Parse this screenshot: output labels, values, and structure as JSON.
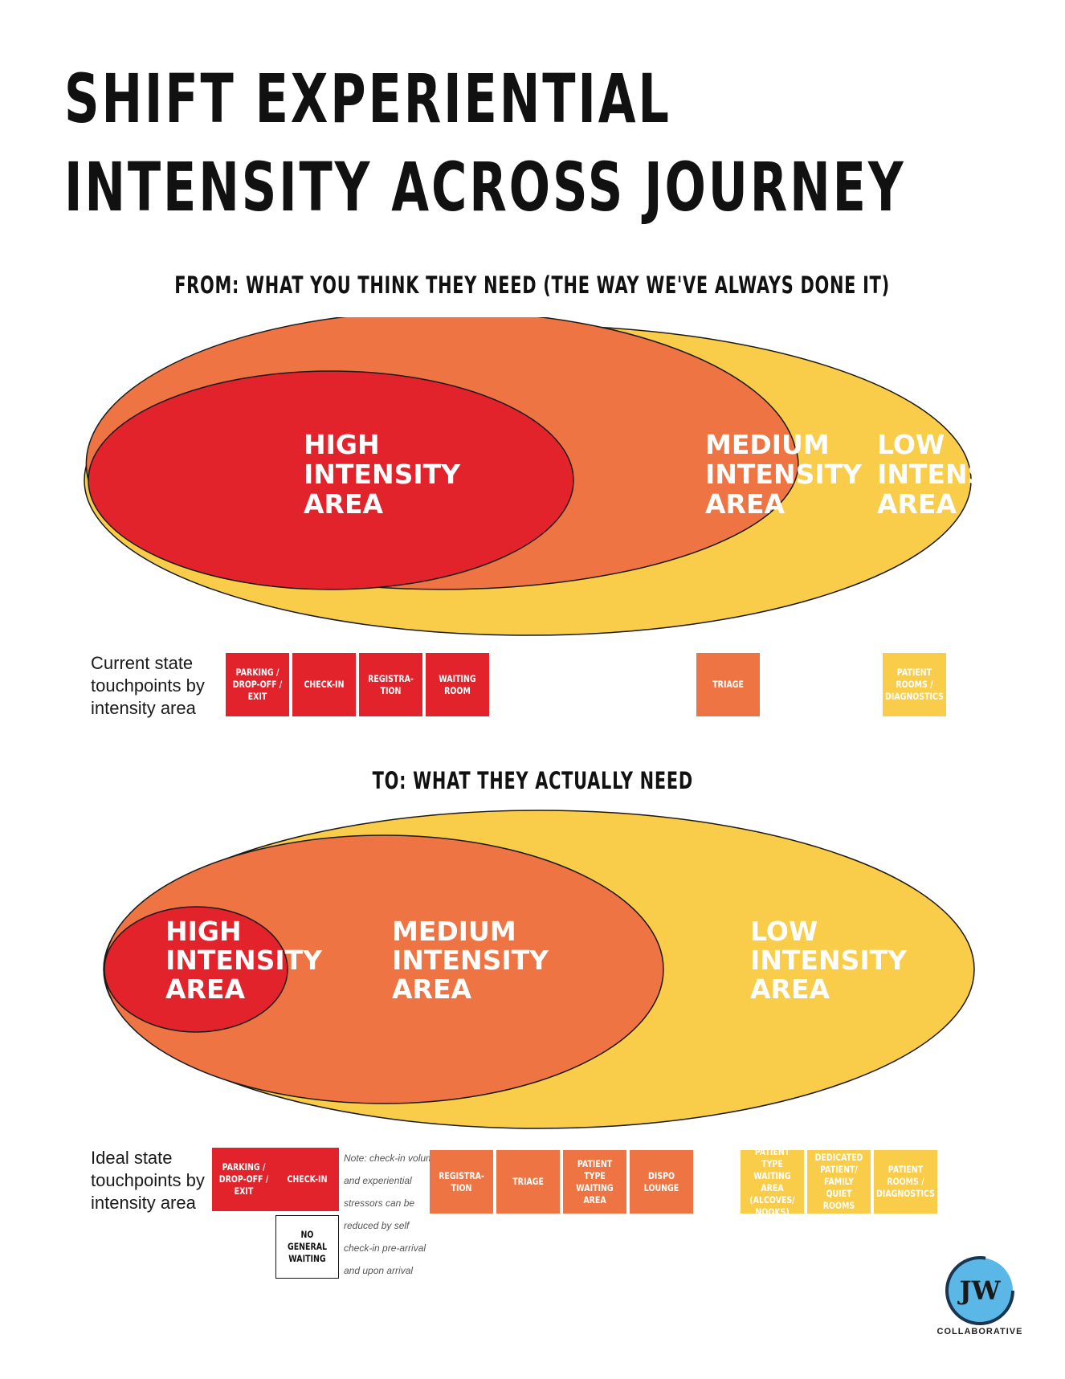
{
  "title": {
    "line1": "SHIFT EXPERIENTIAL",
    "line2": "INTENSITY ACROSS JOURNEY"
  },
  "from": {
    "heading": "FROM: WHAT YOU THINK THEY NEED (THE WAY WE'VE ALWAYS DONE IT)",
    "areas": {
      "high": [
        "HIGH",
        "INTENSITY",
        "AREA"
      ],
      "medium": [
        "MEDIUM",
        "INTENSITY",
        "AREA"
      ],
      "low": [
        "LOW",
        "INTENSITY",
        "AREA"
      ]
    },
    "row_label": "Current state touchpoints by intensity area",
    "touchpoints": [
      {
        "label": "PARKING / DROP-OFF / EXIT",
        "level": "high"
      },
      {
        "label": "CHECK-IN",
        "level": "high"
      },
      {
        "label": "REGISTRA- TION",
        "level": "high"
      },
      {
        "label": "WAITING ROOM",
        "level": "high"
      },
      {
        "label": "TRIAGE",
        "level": "medium"
      },
      {
        "label": "PATIENT ROOMS / DIAGNOSTICS",
        "level": "low"
      }
    ]
  },
  "to": {
    "heading": "TO: WHAT THEY ACTUALLY NEED",
    "areas": {
      "high": [
        "HIGH",
        "INTENSITY",
        "AREA"
      ],
      "medium": [
        "MEDIUM",
        "INTENSITY",
        "AREA"
      ],
      "low": [
        "LOW",
        "INTENSITY",
        "AREA"
      ]
    },
    "row_label": "Ideal state touchpoints by intensity area",
    "touchpoints": [
      {
        "label": "PARKING / DROP-OFF / EXIT",
        "level": "high"
      },
      {
        "label": "CHECK-IN",
        "level": "high"
      },
      {
        "label": "NO GENERAL WAITING",
        "level": "none"
      },
      {
        "label": "REGISTRA- TION",
        "level": "medium"
      },
      {
        "label": "TRIAGE",
        "level": "medium"
      },
      {
        "label": "PATIENT TYPE WAITING AREA",
        "level": "medium"
      },
      {
        "label": "DISPO LOUNGE",
        "level": "medium"
      },
      {
        "label": "PATIENT TYPE WAITING AREA (ALCOVES/ NOOKS)",
        "level": "low"
      },
      {
        "label": "DEDICATED PATIENT/ FAMILY QUIET ROOMS",
        "level": "low"
      },
      {
        "label": "PATIENT ROOMS / DIAGNOSTICS",
        "level": "low"
      }
    ],
    "note": "Note: check-in volume and experiential stressors can be reduced by self check-in pre-arrival and upon arrival"
  },
  "colors": {
    "high": "#e3232c",
    "medium": "#ee7543",
    "low": "#f9cc49"
  },
  "logo": {
    "initials": "JW",
    "wordmark": "COLLABORATIVE"
  }
}
